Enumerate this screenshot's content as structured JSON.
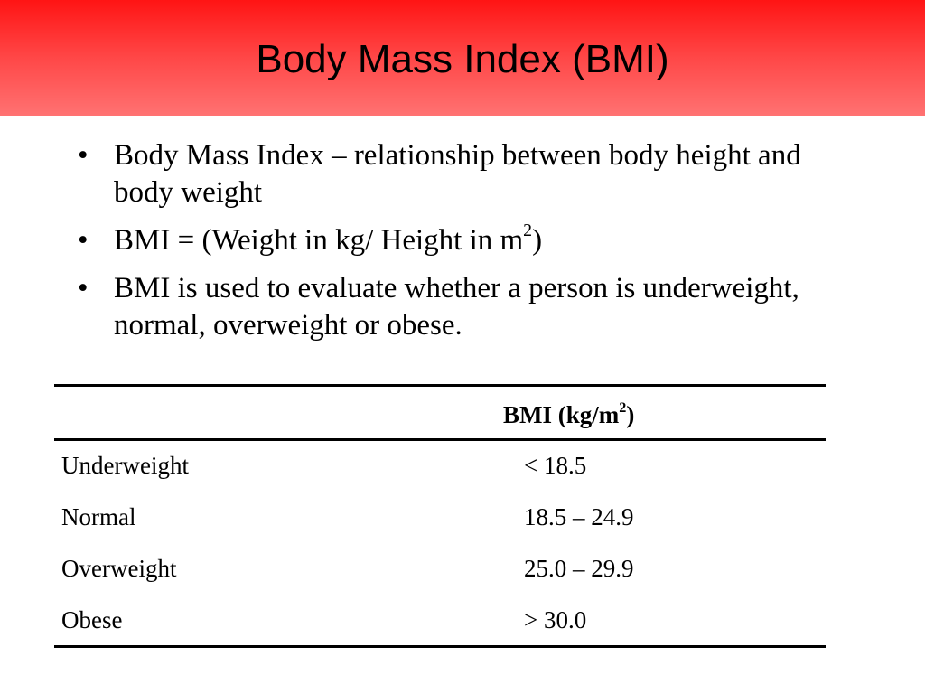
{
  "slide": {
    "title": "Body Mass Index (BMI)",
    "bullets": [
      {
        "text": "Body Mass Index – relationship between body height and body weight"
      },
      {
        "pre": "BMI = (Weight in kg/ Height in m",
        "sup": "2",
        "post": ")"
      },
      {
        "text": "BMI is used to evaluate whether a person is underweight, normal, overweight or obese."
      }
    ],
    "bullet_glyph": "•"
  },
  "table": {
    "header": {
      "pre": "BMI (kg/m",
      "sup": "2",
      "post": ")"
    },
    "rows": [
      {
        "category": "Underweight",
        "bmi": "< 18.5"
      },
      {
        "category": "Normal",
        "bmi": "18.5 – 24.9"
      },
      {
        "category": "Overweight",
        "bmi": "25.0 – 29.9"
      },
      {
        "category": "Obese",
        "bmi": "> 30.0"
      }
    ]
  },
  "colors": {
    "title_band_top": "#ff1414",
    "title_band_bottom": "#ff7272"
  }
}
